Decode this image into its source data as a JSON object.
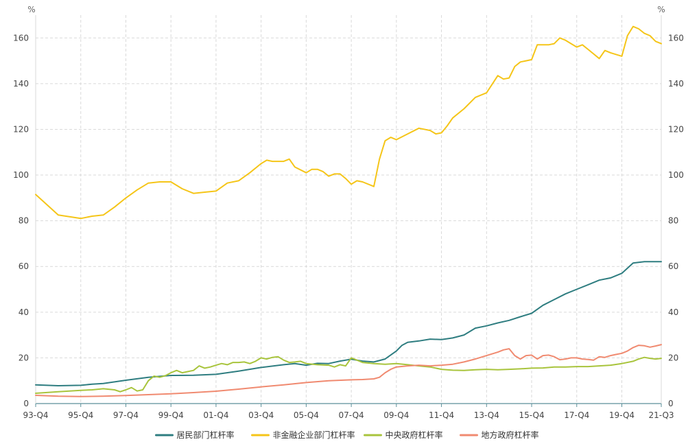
{
  "chart_data": {
    "type": "line",
    "title": "",
    "y_unit_left": "%",
    "y_unit_right": "%",
    "ylim": [
      0,
      170
    ],
    "y_ticks": [
      0,
      20,
      40,
      60,
      80,
      100,
      120,
      140,
      160
    ],
    "grid": true,
    "legend_position": "bottom",
    "x_ticks": [
      {
        "label": "93-Q4",
        "x": 0
      },
      {
        "label": "95-Q4",
        "x": 8
      },
      {
        "label": "97-Q4",
        "x": 16
      },
      {
        "label": "99-Q4",
        "x": 24
      },
      {
        "label": "01-Q4",
        "x": 32
      },
      {
        "label": "03-Q4",
        "x": 40
      },
      {
        "label": "05-Q4",
        "x": 48
      },
      {
        "label": "07-Q4",
        "x": 56
      },
      {
        "label": "09-Q4",
        "x": 64
      },
      {
        "label": "11-Q4",
        "x": 72
      },
      {
        "label": "13-Q4",
        "x": 80
      },
      {
        "label": "15-Q4",
        "x": 88
      },
      {
        "label": "17-Q4",
        "x": 96
      },
      {
        "label": "19-Q4",
        "x": 104
      },
      {
        "label": "21-Q3",
        "x": 111
      }
    ],
    "series": [
      {
        "name": "居民部门杠杆率",
        "color": "#2e7d80",
        "points": [
          [
            0,
            8.2
          ],
          [
            4,
            7.8
          ],
          [
            8,
            8
          ],
          [
            10,
            8.5
          ],
          [
            12,
            8.8
          ],
          [
            16,
            10.2
          ],
          [
            20,
            11.5
          ],
          [
            24,
            12.3
          ],
          [
            28,
            12.4
          ],
          [
            32,
            12.8
          ],
          [
            36,
            14.2
          ],
          [
            40,
            15.8
          ],
          [
            44,
            17
          ],
          [
            46,
            17.5
          ],
          [
            48,
            16.8
          ],
          [
            50,
            17.6
          ],
          [
            52,
            17.5
          ],
          [
            54,
            18.6
          ],
          [
            56,
            19.4
          ],
          [
            58,
            18.6
          ],
          [
            60,
            18.2
          ],
          [
            62,
            19.5
          ],
          [
            64,
            23
          ],
          [
            65,
            25.5
          ],
          [
            66,
            26.8
          ],
          [
            68,
            27.4
          ],
          [
            70,
            28.2
          ],
          [
            72,
            28
          ],
          [
            74,
            28.7
          ],
          [
            76,
            30
          ],
          [
            78,
            33
          ],
          [
            80,
            34
          ],
          [
            82,
            35.3
          ],
          [
            84,
            36.4
          ],
          [
            86,
            38
          ],
          [
            88,
            39.5
          ],
          [
            90,
            43
          ],
          [
            92,
            45.5
          ],
          [
            94,
            48
          ],
          [
            96,
            50
          ],
          [
            98,
            52
          ],
          [
            100,
            54
          ],
          [
            102,
            55
          ],
          [
            104,
            57
          ],
          [
            106,
            61.5
          ],
          [
            108,
            62.1
          ],
          [
            111,
            62.1
          ]
        ]
      },
      {
        "name": "非金融企业部门杠杆率",
        "color": "#f5c518",
        "points": [
          [
            0,
            91.5
          ],
          [
            2,
            87
          ],
          [
            4,
            82.5
          ],
          [
            8,
            81
          ],
          [
            10,
            82
          ],
          [
            12,
            82.5
          ],
          [
            14,
            86
          ],
          [
            16,
            90
          ],
          [
            18,
            93.5
          ],
          [
            20,
            96.5
          ],
          [
            22,
            97
          ],
          [
            24,
            97
          ],
          [
            26,
            94
          ],
          [
            28,
            92
          ],
          [
            30,
            92.5
          ],
          [
            32,
            93
          ],
          [
            34,
            96.5
          ],
          [
            36,
            97.5
          ],
          [
            38,
            101
          ],
          [
            40,
            105
          ],
          [
            41,
            106.5
          ],
          [
            42,
            106
          ],
          [
            44,
            106
          ],
          [
            45,
            107
          ],
          [
            46,
            103.5
          ],
          [
            48,
            101
          ],
          [
            49,
            102.5
          ],
          [
            50,
            102.5
          ],
          [
            51,
            101.5
          ],
          [
            52,
            99.5
          ],
          [
            53,
            100.5
          ],
          [
            54,
            100.5
          ],
          [
            55,
            98.5
          ],
          [
            56,
            96
          ],
          [
            57,
            97.5
          ],
          [
            58,
            97
          ],
          [
            60,
            95
          ],
          [
            61,
            107
          ],
          [
            62,
            115
          ],
          [
            63,
            116.5
          ],
          [
            64,
            115.5
          ],
          [
            66,
            118
          ],
          [
            68,
            120.5
          ],
          [
            70,
            119.5
          ],
          [
            71,
            118
          ],
          [
            72,
            118.5
          ],
          [
            73,
            121.5
          ],
          [
            74,
            125
          ],
          [
            76,
            129
          ],
          [
            78,
            134
          ],
          [
            80,
            136
          ],
          [
            82,
            143.5
          ],
          [
            83,
            142
          ],
          [
            84,
            142.5
          ],
          [
            85,
            147.5
          ],
          [
            86,
            149.5
          ],
          [
            87,
            150
          ],
          [
            88,
            150.5
          ],
          [
            89,
            157
          ],
          [
            90,
            157
          ],
          [
            91,
            157
          ],
          [
            92,
            157.5
          ],
          [
            93,
            160
          ],
          [
            94,
            159
          ],
          [
            95,
            157.5
          ],
          [
            96,
            156
          ],
          [
            97,
            157
          ],
          [
            98,
            155
          ],
          [
            100,
            151
          ],
          [
            101,
            154.5
          ],
          [
            102,
            153.5
          ],
          [
            104,
            152
          ],
          [
            105,
            161
          ],
          [
            106,
            165
          ],
          [
            107,
            164
          ],
          [
            108,
            162
          ],
          [
            109,
            161
          ],
          [
            110,
            158.5
          ],
          [
            111,
            157.5
          ]
        ]
      },
      {
        "name": "中央政府杠杆率",
        "color": "#a8c43c",
        "points": [
          [
            0,
            4.5
          ],
          [
            4,
            5.2
          ],
          [
            6,
            5.5
          ],
          [
            8,
            5.8
          ],
          [
            10,
            6
          ],
          [
            12,
            6.5
          ],
          [
            14,
            6
          ],
          [
            15,
            5.2
          ],
          [
            16,
            6
          ],
          [
            17,
            7
          ],
          [
            18,
            5.5
          ],
          [
            19,
            6
          ],
          [
            20,
            10
          ],
          [
            21,
            12
          ],
          [
            22,
            11.5
          ],
          [
            23,
            12.2
          ],
          [
            24,
            13.5
          ],
          [
            25,
            14.5
          ],
          [
            26,
            13.5
          ],
          [
            27,
            14
          ],
          [
            28,
            14.5
          ],
          [
            29,
            16.5
          ],
          [
            30,
            15.5
          ],
          [
            31,
            16
          ],
          [
            32,
            16.8
          ],
          [
            33,
            17.5
          ],
          [
            34,
            17
          ],
          [
            35,
            18
          ],
          [
            36,
            18
          ],
          [
            37,
            18.2
          ],
          [
            38,
            17.5
          ],
          [
            39,
            18.5
          ],
          [
            40,
            20
          ],
          [
            41,
            19.5
          ],
          [
            42,
            20.2
          ],
          [
            43,
            20.5
          ],
          [
            44,
            19
          ],
          [
            45,
            18
          ],
          [
            46,
            18.2
          ],
          [
            47,
            18.5
          ],
          [
            48,
            17.5
          ],
          [
            50,
            17
          ],
          [
            52,
            16.8
          ],
          [
            53,
            16
          ],
          [
            54,
            17
          ],
          [
            55,
            16.5
          ],
          [
            56,
            20
          ],
          [
            57,
            19
          ],
          [
            58,
            18
          ],
          [
            60,
            17.5
          ],
          [
            62,
            17.2
          ],
          [
            64,
            17.5
          ],
          [
            66,
            17
          ],
          [
            68,
            16.5
          ],
          [
            70,
            16
          ],
          [
            72,
            15
          ],
          [
            74,
            14.6
          ],
          [
            76,
            14.5
          ],
          [
            78,
            14.8
          ],
          [
            80,
            15
          ],
          [
            82,
            14.8
          ],
          [
            84,
            15
          ],
          [
            86,
            15.2
          ],
          [
            88,
            15.5
          ],
          [
            90,
            15.6
          ],
          [
            92,
            16
          ],
          [
            94,
            16
          ],
          [
            96,
            16.2
          ],
          [
            98,
            16.2
          ],
          [
            100,
            16.5
          ],
          [
            102,
            16.8
          ],
          [
            104,
            17.5
          ],
          [
            106,
            18.5
          ],
          [
            107,
            19.5
          ],
          [
            108,
            20.2
          ],
          [
            109,
            19.8
          ],
          [
            110,
            19.5
          ],
          [
            111,
            19.8
          ]
        ]
      },
      {
        "name": "地方政府杠杆率",
        "color": "#f08a70",
        "points": [
          [
            0,
            3.6
          ],
          [
            4,
            3.2
          ],
          [
            8,
            3.1
          ],
          [
            12,
            3.2
          ],
          [
            16,
            3.5
          ],
          [
            20,
            3.9
          ],
          [
            24,
            4.3
          ],
          [
            28,
            4.8
          ],
          [
            32,
            5.4
          ],
          [
            36,
            6.3
          ],
          [
            40,
            7.3
          ],
          [
            44,
            8.2
          ],
          [
            48,
            9.2
          ],
          [
            52,
            10
          ],
          [
            56,
            10.4
          ],
          [
            58,
            10.5
          ],
          [
            60,
            10.8
          ],
          [
            61,
            11.5
          ],
          [
            62,
            13.5
          ],
          [
            63,
            15
          ],
          [
            64,
            16
          ],
          [
            66,
            16.5
          ],
          [
            68,
            16.8
          ],
          [
            70,
            16.5
          ],
          [
            72,
            16.8
          ],
          [
            74,
            17.2
          ],
          [
            76,
            18.2
          ],
          [
            78,
            19.5
          ],
          [
            80,
            21
          ],
          [
            82,
            22.5
          ],
          [
            83,
            23.5
          ],
          [
            84,
            24
          ],
          [
            85,
            21
          ],
          [
            86,
            19.5
          ],
          [
            87,
            21
          ],
          [
            88,
            21.2
          ],
          [
            89,
            19.5
          ],
          [
            90,
            21
          ],
          [
            91,
            21.2
          ],
          [
            92,
            20.5
          ],
          [
            93,
            19.2
          ],
          [
            94,
            19.5
          ],
          [
            95,
            20
          ],
          [
            96,
            20
          ],
          [
            97,
            19.5
          ],
          [
            98,
            19.3
          ],
          [
            99,
            19
          ],
          [
            100,
            20.5
          ],
          [
            101,
            20.2
          ],
          [
            102,
            21
          ],
          [
            103,
            21.5
          ],
          [
            104,
            22
          ],
          [
            105,
            23
          ],
          [
            106,
            24.5
          ],
          [
            107,
            25.5
          ],
          [
            108,
            25.3
          ],
          [
            109,
            24.7
          ],
          [
            110,
            25.2
          ],
          [
            111,
            25.8
          ]
        ]
      }
    ]
  }
}
